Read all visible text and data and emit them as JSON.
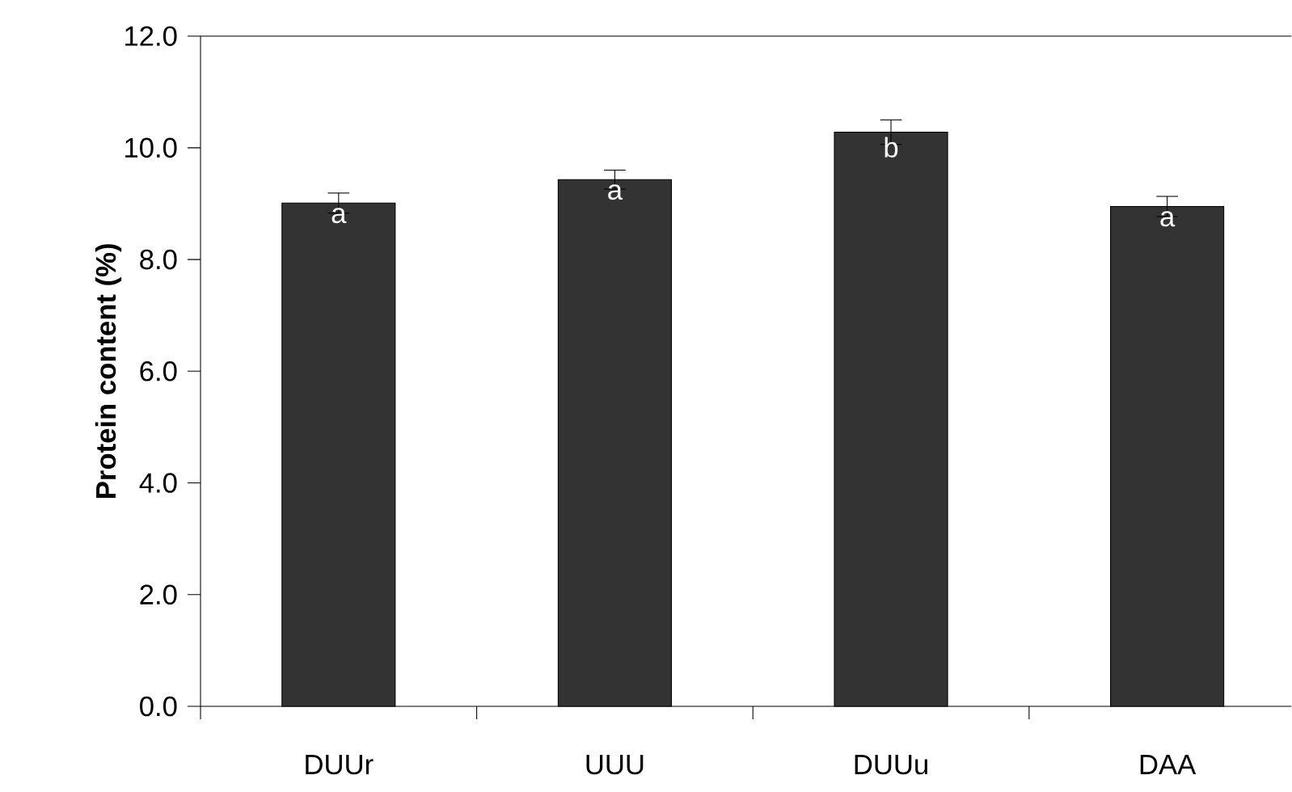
{
  "chart_data": {
    "type": "bar",
    "ylabel": "Protein content (%)",
    "categories": [
      "DUUr",
      "UUU",
      "DUUu",
      "DAA"
    ],
    "values": [
      9.01,
      9.43,
      10.28,
      8.95
    ],
    "errors": [
      0.18,
      0.17,
      0.22,
      0.18
    ],
    "color": "#333333",
    "ylim": [
      0,
      12
    ],
    "yticks": [
      {
        "value": 0,
        "label": "0.0"
      },
      {
        "value": 2,
        "label": "2.0"
      },
      {
        "value": 4,
        "label": "4.0"
      },
      {
        "value": 6,
        "label": "6.0"
      },
      {
        "value": 8,
        "label": "8.0"
      },
      {
        "value": 10,
        "label": "10.0"
      },
      {
        "value": 12,
        "label": "12.0"
      }
    ],
    "annotations": [
      {
        "text": "a",
        "x": "DUUr",
        "y": 9.01
      },
      {
        "text": "a",
        "x": "UUU",
        "y": 9.43
      },
      {
        "text": "b",
        "x": "DUUu",
        "y": 10.28
      },
      {
        "text": "a",
        "x": "DAA",
        "y": 8.95
      }
    ]
  }
}
